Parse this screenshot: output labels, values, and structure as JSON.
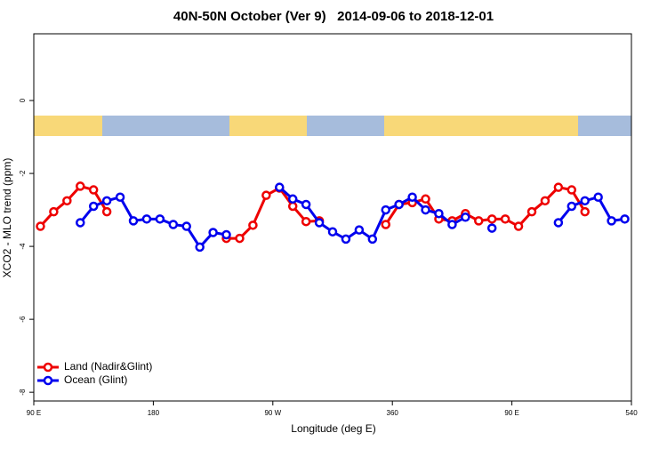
{
  "chart_data": {
    "type": "line",
    "title": "40N-50N October (Ver 9)   2014-09-06 to 2018-12-01",
    "xlabel": "Longitude (deg E)",
    "ylabel": "XCO2 - MLO trend (ppm)",
    "x": [
      95,
      105,
      115,
      125,
      135,
      145,
      155,
      165,
      175,
      185,
      195,
      205,
      215,
      225,
      235,
      245,
      255,
      265,
      275,
      285,
      295,
      305,
      315,
      325,
      335,
      345,
      355,
      365,
      375,
      385,
      395,
      405,
      415,
      425,
      435,
      445,
      455,
      465,
      475,
      485,
      495,
      505,
      515,
      525,
      535
    ],
    "series": [
      {
        "name": "Land (Nadir&Glint)",
        "color": "#ee0000",
        "values": [
          -3.45,
          -3.05,
          -2.75,
          -2.35,
          -2.45,
          -3.05,
          null,
          null,
          null,
          null,
          null,
          null,
          null,
          null,
          -3.78,
          -3.78,
          -3.42,
          -2.6,
          -2.4,
          -2.9,
          -3.32,
          -3.3,
          null,
          null,
          null,
          null,
          -3.4,
          -2.85,
          -2.8,
          -2.7,
          -3.25,
          -3.3,
          -3.1,
          -3.3,
          -3.25,
          -3.25,
          -3.45,
          -3.05,
          -2.75,
          -2.38,
          -2.45,
          -3.05,
          null,
          null,
          null
        ]
      },
      {
        "name": "Ocean (Glint)",
        "color": "#0000ee",
        "values": [
          null,
          null,
          null,
          -3.35,
          -2.9,
          -2.75,
          -2.65,
          -3.3,
          -3.25,
          -3.25,
          -3.4,
          -3.45,
          -4.02,
          -3.62,
          -3.68,
          null,
          null,
          null,
          -2.38,
          -2.7,
          -2.85,
          -3.35,
          -3.6,
          -3.8,
          -3.55,
          -3.8,
          -3.0,
          -2.85,
          -2.65,
          -3.0,
          -3.1,
          -3.4,
          -3.2,
          null,
          -3.5,
          null,
          null,
          null,
          null,
          -3.35,
          -2.9,
          -2.75,
          -2.65,
          -3.3,
          -3.25
        ]
      }
    ],
    "xlim": [
      90,
      540
    ],
    "xticks": [
      {
        "value": 90,
        "label": "90 E"
      },
      180,
      {
        "value": 270,
        "label": "90 W"
      },
      360,
      {
        "value": 450,
        "label": "90 E"
      },
      540
    ],
    "ylim": [
      -8.24,
      1.83
    ],
    "yticks": [
      -8,
      -6,
      -4,
      -2,
      0
    ],
    "legend": "bottom-left"
  }
}
